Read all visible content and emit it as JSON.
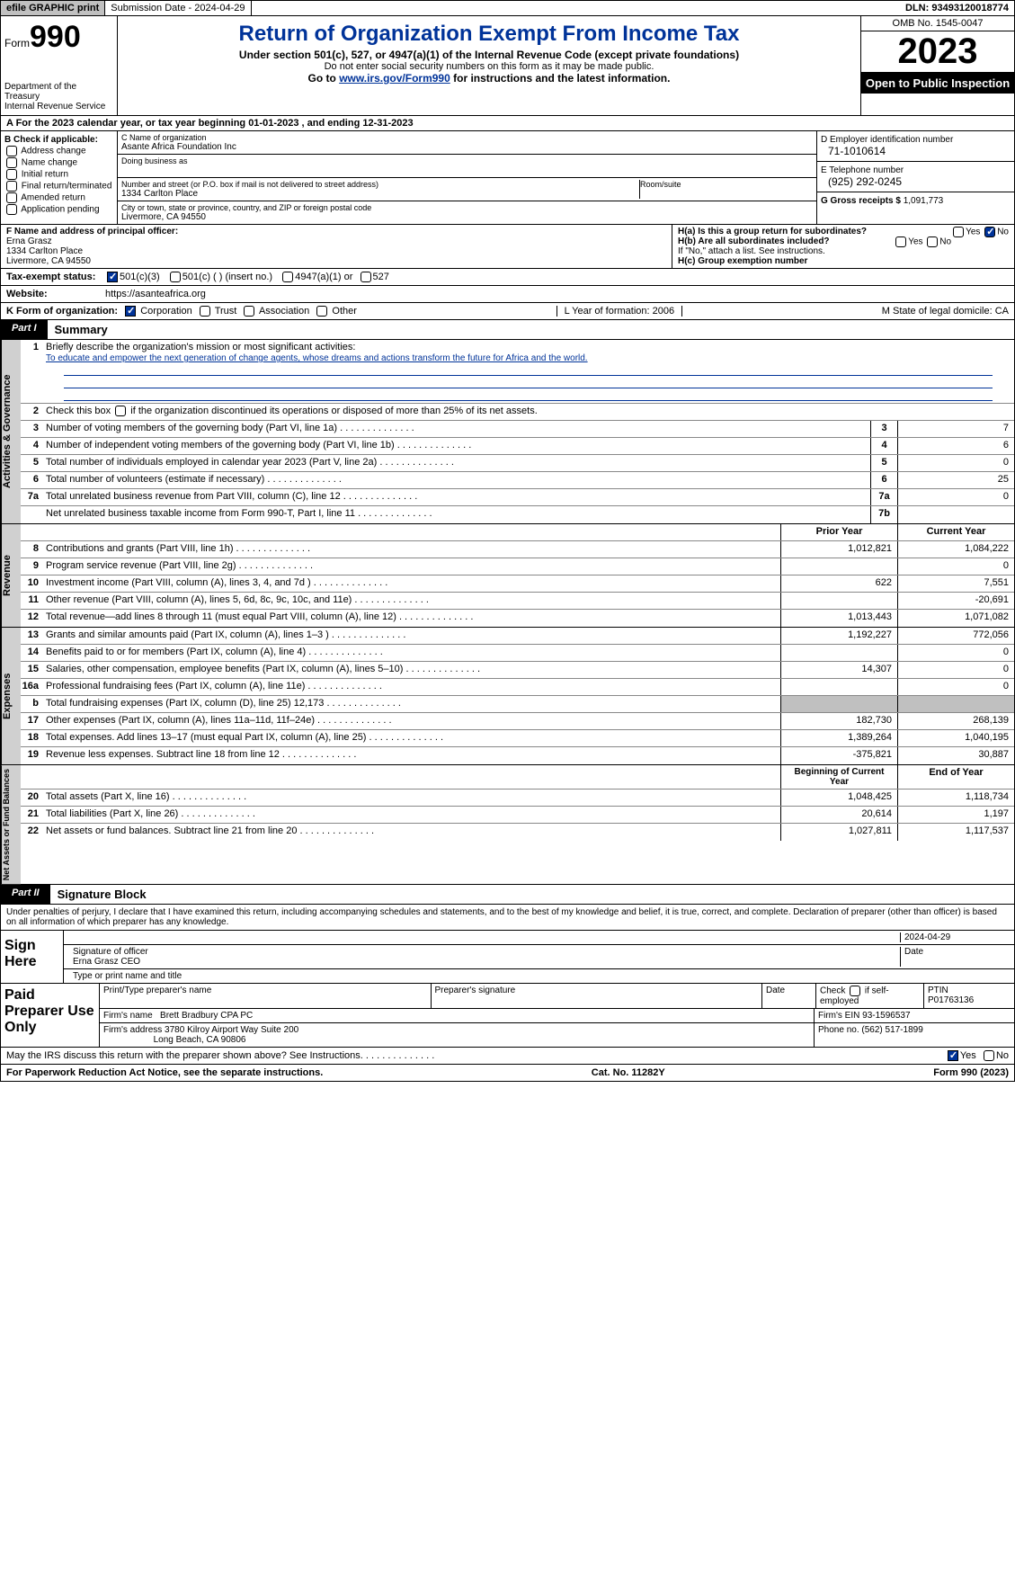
{
  "topbar": {
    "efile": "efile GRAPHIC print",
    "submission": "Submission Date - 2024-04-29",
    "dln": "DLN: 93493120018774"
  },
  "header": {
    "form_label": "Form",
    "form_num": "990",
    "dept": "Department of the Treasury\nInternal Revenue Service",
    "title": "Return of Organization Exempt From Income Tax",
    "sub1": "Under section 501(c), 527, or 4947(a)(1) of the Internal Revenue Code (except private foundations)",
    "sub2": "Do not enter social security numbers on this form as it may be made public.",
    "sub3_pre": "Go to ",
    "sub3_link": "www.irs.gov/Form990",
    "sub3_post": " for instructions and the latest information.",
    "omb": "OMB No. 1545-0047",
    "year": "2023",
    "inspect": "Open to Public Inspection"
  },
  "line_a": "A For the 2023 calendar year, or tax year beginning 01-01-2023    , and ending 12-31-2023",
  "box_b": {
    "title": "B Check if applicable:",
    "items": [
      "Address change",
      "Name change",
      "Initial return",
      "Final return/terminated",
      "Amended return",
      "Application pending"
    ]
  },
  "box_c": {
    "name_lbl": "C Name of organization",
    "name": "Asante Africa Foundation Inc",
    "dba_lbl": "Doing business as",
    "street_lbl": "Number and street (or P.O. box if mail is not delivered to street address)",
    "street": "1334 Carlton Place",
    "room_lbl": "Room/suite",
    "city_lbl": "City or town, state or province, country, and ZIP or foreign postal code",
    "city": "Livermore, CA  94550"
  },
  "box_d": {
    "ein_lbl": "D Employer identification number",
    "ein": "71-1010614",
    "phone_lbl": "E Telephone number",
    "phone": "(925) 292-0245",
    "gross_lbl": "G Gross receipts $",
    "gross": "1,091,773"
  },
  "box_f": {
    "lbl": "F  Name and address of principal officer:",
    "name": "Erna Grasz",
    "street": "1334 Carlton Place",
    "city": "Livermore, CA  94550"
  },
  "box_h": {
    "a": "H(a)  Is this a group return for subordinates?",
    "b": "H(b)  Are all subordinates included?",
    "note": "If \"No,\" attach a list. See instructions.",
    "c": "H(c)  Group exemption number",
    "yes": "Yes",
    "no": "No"
  },
  "row_i": {
    "lbl": "Tax-exempt status:",
    "opts": [
      "501(c)(3)",
      "501(c) (  ) (insert no.)",
      "4947(a)(1) or",
      "527"
    ]
  },
  "row_j": {
    "lbl": "Website:",
    "val": "https://asanteafrica.org"
  },
  "row_k": {
    "lbl": "K Form of organization:",
    "opts": [
      "Corporation",
      "Trust",
      "Association",
      "Other"
    ],
    "l": "L Year of formation: 2006",
    "m": "M State of legal domicile: CA"
  },
  "part1": {
    "tab": "Part I",
    "title": "Summary"
  },
  "summary": {
    "gov_label": "Activities & Governance",
    "rev_label": "Revenue",
    "exp_label": "Expenses",
    "net_label": "Net Assets or Fund Balances",
    "line1_lbl": "Briefly describe the organization's mission or most significant activities:",
    "line1_val": "To educate and empower the next generation of change agents, whose dreams and actions transform the future for Africa and the world.",
    "line2": "Check this box      if the organization discontinued its operations or disposed of more than 25% of its net assets.",
    "rows_gov": [
      {
        "n": "3",
        "d": "Number of voting members of the governing body (Part VI, line 1a)",
        "box": "3",
        "v": "7"
      },
      {
        "n": "4",
        "d": "Number of independent voting members of the governing body (Part VI, line 1b)",
        "box": "4",
        "v": "6"
      },
      {
        "n": "5",
        "d": "Total number of individuals employed in calendar year 2023 (Part V, line 2a)",
        "box": "5",
        "v": "0"
      },
      {
        "n": "6",
        "d": "Total number of volunteers (estimate if necessary)",
        "box": "6",
        "v": "25"
      },
      {
        "n": "7a",
        "d": "Total unrelated business revenue from Part VIII, column (C), line 12",
        "box": "7a",
        "v": "0"
      },
      {
        "n": "",
        "d": "Net unrelated business taxable income from Form 990-T, Part I, line 11",
        "box": "7b",
        "v": ""
      }
    ],
    "hdr_prior": "Prior Year",
    "hdr_curr": "Current Year",
    "rows_rev": [
      {
        "n": "8",
        "d": "Contributions and grants (Part VIII, line 1h)",
        "p": "1,012,821",
        "c": "1,084,222"
      },
      {
        "n": "9",
        "d": "Program service revenue (Part VIII, line 2g)",
        "p": "",
        "c": "0"
      },
      {
        "n": "10",
        "d": "Investment income (Part VIII, column (A), lines 3, 4, and 7d )",
        "p": "622",
        "c": "7,551"
      },
      {
        "n": "11",
        "d": "Other revenue (Part VIII, column (A), lines 5, 6d, 8c, 9c, 10c, and 11e)",
        "p": "",
        "c": "-20,691"
      },
      {
        "n": "12",
        "d": "Total revenue—add lines 8 through 11 (must equal Part VIII, column (A), line 12)",
        "p": "1,013,443",
        "c": "1,071,082"
      }
    ],
    "rows_exp": [
      {
        "n": "13",
        "d": "Grants and similar amounts paid (Part IX, column (A), lines 1–3 )",
        "p": "1,192,227",
        "c": "772,056"
      },
      {
        "n": "14",
        "d": "Benefits paid to or for members (Part IX, column (A), line 4)",
        "p": "",
        "c": "0"
      },
      {
        "n": "15",
        "d": "Salaries, other compensation, employee benefits (Part IX, column (A), lines 5–10)",
        "p": "14,307",
        "c": "0"
      },
      {
        "n": "16a",
        "d": "Professional fundraising fees (Part IX, column (A), line 11e)",
        "p": "",
        "c": "0"
      },
      {
        "n": "b",
        "d": "Total fundraising expenses (Part IX, column (D), line 25) 12,173",
        "p": "shade",
        "c": "shade"
      },
      {
        "n": "17",
        "d": "Other expenses (Part IX, column (A), lines 11a–11d, 11f–24e)",
        "p": "182,730",
        "c": "268,139"
      },
      {
        "n": "18",
        "d": "Total expenses. Add lines 13–17 (must equal Part IX, column (A), line 25)",
        "p": "1,389,264",
        "c": "1,040,195"
      },
      {
        "n": "19",
        "d": "Revenue less expenses. Subtract line 18 from line 12",
        "p": "-375,821",
        "c": "30,887"
      }
    ],
    "hdr_beg": "Beginning of Current Year",
    "hdr_end": "End of Year",
    "rows_net": [
      {
        "n": "20",
        "d": "Total assets (Part X, line 16)",
        "p": "1,048,425",
        "c": "1,118,734"
      },
      {
        "n": "21",
        "d": "Total liabilities (Part X, line 26)",
        "p": "20,614",
        "c": "1,197"
      },
      {
        "n": "22",
        "d": "Net assets or fund balances. Subtract line 21 from line 20",
        "p": "1,027,811",
        "c": "1,117,537"
      }
    ]
  },
  "part2": {
    "tab": "Part II",
    "title": "Signature Block"
  },
  "sig": {
    "penalty": "Under penalties of perjury, I declare that I have examined this return, including accompanying schedules and statements, and to the best of my knowledge and belief, it is true, correct, and complete. Declaration of preparer (other than officer) is based on all information of which preparer has any knowledge.",
    "sign_lbl": "Sign Here",
    "sig_of": "Signature of officer",
    "date": "Date",
    "sig_date": "2024-04-29",
    "name_title": "Erna Grasz CEO",
    "type_lbl": "Type or print name and title",
    "paid_lbl": "Paid Preparer Use Only",
    "prep_name_lbl": "Print/Type preparer's name",
    "prep_sig_lbl": "Preparer's signature",
    "date_lbl": "Date",
    "self_lbl": "Check      if self-employed",
    "ptin_lbl": "PTIN",
    "ptin": "P01763136",
    "firm_name_lbl": "Firm's name",
    "firm_name": "Brett Bradbury CPA PC",
    "firm_ein_lbl": "Firm's EIN",
    "firm_ein": "93-1596537",
    "firm_addr_lbl": "Firm's address",
    "firm_addr1": "3780 Kilroy Airport Way Suite 200",
    "firm_addr2": "Long Beach, CA  90806",
    "phone_lbl": "Phone no.",
    "phone": "(562) 517-1899"
  },
  "footer": {
    "discuss": "May the IRS discuss this return with the preparer shown above? See Instructions.",
    "yes": "Yes",
    "no": "No",
    "paperwork": "For Paperwork Reduction Act Notice, see the separate instructions.",
    "cat": "Cat. No. 11282Y",
    "form": "Form 990 (2023)"
  }
}
